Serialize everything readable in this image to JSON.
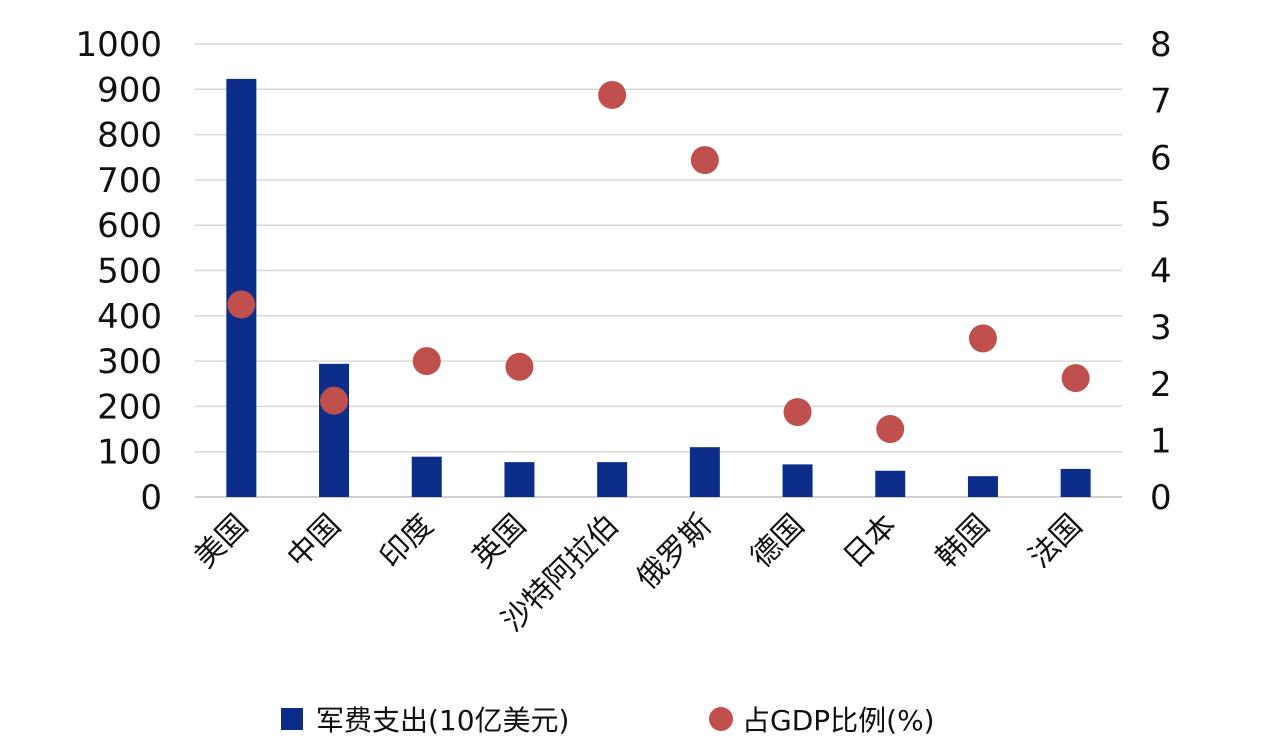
{
  "chart_data": {
    "type": "bar",
    "categories": [
      "美国",
      "中国",
      "印度",
      "英国",
      "沙特阿拉伯",
      "俄罗斯",
      "德国",
      "日本",
      "韩国",
      "法国"
    ],
    "series": [
      {
        "name": "军费支出(10亿美元)",
        "type": "bar",
        "axis": "left",
        "color": "#0c2e8a",
        "values": [
          923,
          294,
          89,
          77,
          77,
          110,
          72,
          58,
          46,
          62
        ]
      },
      {
        "name": "占GDP比例(%)",
        "type": "scatter",
        "axis": "right",
        "color": "#c0504d",
        "values": [
          3.4,
          1.7,
          2.4,
          2.3,
          7.1,
          5.95,
          1.5,
          1.2,
          2.8,
          2.1
        ]
      }
    ],
    "y_left": {
      "lim": [
        0,
        1000
      ],
      "ticks": [
        "0",
        "100",
        "200",
        "300",
        "400",
        "500",
        "600",
        "700",
        "800",
        "900",
        "1000"
      ]
    },
    "y_right": {
      "lim": [
        0,
        8
      ],
      "ticks": [
        "0",
        "1",
        "2",
        "3",
        "4",
        "5",
        "6",
        "7",
        "8"
      ]
    },
    "grid": true,
    "legend_position": "bottom"
  }
}
